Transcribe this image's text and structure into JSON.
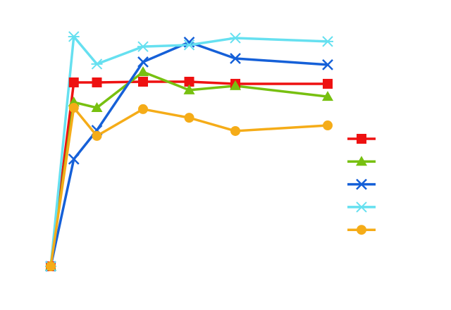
{
  "chart_data": {
    "type": "line",
    "x": [
      0,
      1,
      2,
      4,
      6,
      8,
      12
    ],
    "xlim": [
      0,
      12
    ],
    "ylim": [
      -10,
      105
    ],
    "series": [
      {
        "color": "#ee1111",
        "marker": "square",
        "values": [
          0,
          79.1,
          79.1,
          79.4,
          79.4,
          78.5,
          78.5
        ]
      },
      {
        "color": "#77c010",
        "marker": "triangle",
        "values": [
          0,
          70.6,
          68.2,
          83.6,
          75.8,
          77.6,
          73.0
        ]
      },
      {
        "color": "#1560d8",
        "marker": "x",
        "values": [
          0,
          46.1,
          58.5,
          87.9,
          96.4,
          89.4,
          86.7
        ]
      },
      {
        "color": "#66e0f0",
        "marker": "star",
        "values": [
          0,
          98.8,
          87.0,
          94.5,
          95.2,
          98.2,
          96.7
        ]
      },
      {
        "color": "#f5ac18",
        "marker": "circle",
        "values": [
          0,
          68.2,
          56.1,
          67.6,
          63.9,
          58.2,
          60.6
        ]
      }
    ]
  }
}
